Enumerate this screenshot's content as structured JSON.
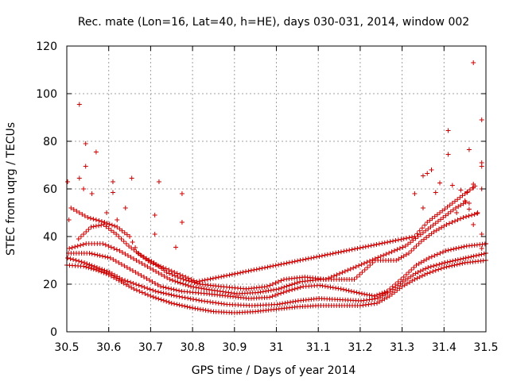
{
  "chart_data": {
    "type": "scatter",
    "title": "Rec. mate (Lon=16, Lat=40, h=HE), days 030-031, 2014, window 002",
    "xlabel": "GPS time / Days of year 2014",
    "ylabel": "STEC from uqrg / TECUs",
    "xlim": [
      30.5,
      31.5
    ],
    "ylim": [
      0,
      120
    ],
    "xticks": [
      30.5,
      30.6,
      30.7,
      30.8,
      30.9,
      31.0,
      31.1,
      31.2,
      31.3,
      31.4,
      31.5
    ],
    "xtick_labels": [
      "30.5",
      "30.6",
      "30.7",
      "30.8",
      "30.9",
      "31",
      "31.1",
      "31.2",
      "31.3",
      "31.4",
      "31.5"
    ],
    "yticks": [
      0,
      20,
      40,
      60,
      80,
      100,
      120
    ],
    "ytick_labels": [
      "0",
      "20",
      "40",
      "60",
      "80",
      "100",
      "120"
    ],
    "grid": true,
    "marker": "+",
    "color": "#cc0000",
    "outliers": [
      [
        30.502,
        63
      ],
      [
        30.505,
        47
      ],
      [
        30.53,
        95.5
      ],
      [
        30.545,
        79
      ],
      [
        30.545,
        69.5
      ],
      [
        30.53,
        64.5
      ],
      [
        30.57,
        75.5
      ],
      [
        30.56,
        58
      ],
      [
        30.54,
        60
      ],
      [
        30.595,
        50
      ],
      [
        30.61,
        63
      ],
      [
        30.61,
        58.5
      ],
      [
        30.62,
        47
      ],
      [
        30.64,
        52
      ],
      [
        30.655,
        64.5
      ],
      [
        30.72,
        63
      ],
      [
        30.71,
        49
      ],
      [
        30.71,
        41
      ],
      [
        30.775,
        58
      ],
      [
        30.775,
        46
      ],
      [
        30.76,
        35.5
      ],
      [
        31.47,
        113
      ],
      [
        31.49,
        89
      ],
      [
        31.41,
        84.5
      ],
      [
        31.41,
        74.5
      ],
      [
        31.46,
        76.5
      ],
      [
        31.49,
        71
      ],
      [
        31.49,
        69.5
      ],
      [
        31.36,
        66.5
      ],
      [
        31.37,
        68
      ],
      [
        31.35,
        65.5
      ],
      [
        31.47,
        60.5
      ],
      [
        31.49,
        60
      ],
      [
        31.44,
        59.5
      ],
      [
        31.455,
        58.5
      ],
      [
        31.39,
        62.5
      ],
      [
        31.42,
        61.5
      ],
      [
        31.33,
        58
      ],
      [
        31.38,
        58.5
      ],
      [
        31.47,
        45
      ],
      [
        31.49,
        41
      ],
      [
        31.49,
        35
      ],
      [
        31.35,
        52
      ],
      [
        31.43,
        50
      ],
      [
        31.46,
        51.5
      ],
      [
        31.46,
        54
      ]
    ],
    "bands": [
      {
        "offset": 0,
        "points": [
          [
            30.5,
            28
          ],
          [
            30.54,
            27.5
          ],
          [
            30.57,
            26
          ],
          [
            30.6,
            24
          ],
          [
            30.63,
            21
          ],
          [
            30.66,
            18
          ],
          [
            30.7,
            15
          ],
          [
            30.75,
            12
          ],
          [
            30.8,
            10
          ],
          [
            30.85,
            8.5
          ],
          [
            30.9,
            8
          ],
          [
            30.95,
            8.5
          ],
          [
            31.0,
            9.5
          ],
          [
            31.05,
            10.5
          ],
          [
            31.1,
            11
          ],
          [
            31.15,
            11
          ],
          [
            31.2,
            11
          ],
          [
            31.24,
            12
          ],
          [
            31.27,
            15
          ],
          [
            31.3,
            19
          ],
          [
            31.33,
            22
          ],
          [
            31.36,
            24.5
          ],
          [
            31.4,
            27
          ],
          [
            31.45,
            29
          ],
          [
            31.5,
            30
          ]
        ]
      },
      {
        "offset": 0.004,
        "points": [
          [
            30.5,
            31
          ],
          [
            30.54,
            29
          ],
          [
            30.57,
            27
          ],
          [
            30.6,
            25
          ],
          [
            30.63,
            22
          ],
          [
            30.67,
            19.5
          ],
          [
            30.71,
            17
          ],
          [
            30.76,
            15
          ],
          [
            30.82,
            13
          ],
          [
            30.88,
            11.5
          ],
          [
            30.94,
            11
          ],
          [
            31.0,
            11.5
          ],
          [
            31.05,
            13
          ],
          [
            31.1,
            14
          ],
          [
            31.15,
            13.5
          ],
          [
            31.2,
            13
          ],
          [
            31.24,
            14
          ],
          [
            31.27,
            17
          ],
          [
            31.3,
            21
          ],
          [
            31.33,
            24.5
          ],
          [
            31.36,
            27
          ],
          [
            31.4,
            29
          ],
          [
            31.45,
            31
          ],
          [
            31.5,
            33
          ]
        ]
      },
      {
        "offset": 0.008,
        "points": [
          [
            30.5,
            33
          ],
          [
            30.55,
            33
          ],
          [
            30.6,
            31
          ],
          [
            30.64,
            27
          ],
          [
            30.68,
            23
          ],
          [
            30.72,
            19
          ],
          [
            30.77,
            17
          ],
          [
            30.83,
            16
          ],
          [
            30.88,
            15
          ],
          [
            30.93,
            14
          ],
          [
            30.98,
            14.5
          ],
          [
            31.02,
            17
          ],
          [
            31.06,
            19
          ],
          [
            31.1,
            19.5
          ],
          [
            31.15,
            18
          ],
          [
            31.2,
            16
          ],
          [
            31.23,
            15
          ],
          [
            31.26,
            17
          ],
          [
            31.3,
            23
          ],
          [
            31.33,
            28
          ],
          [
            31.36,
            31
          ],
          [
            31.4,
            34
          ],
          [
            31.45,
            36
          ],
          [
            31.5,
            37
          ]
        ]
      },
      {
        "offset": 0.012,
        "points": [
          [
            30.5,
            35
          ],
          [
            30.54,
            37
          ],
          [
            30.58,
            37
          ],
          [
            30.62,
            34
          ],
          [
            30.66,
            30
          ],
          [
            30.7,
            26
          ],
          [
            30.74,
            22
          ],
          [
            30.79,
            19
          ],
          [
            30.84,
            17.5
          ],
          [
            30.9,
            16
          ],
          [
            30.95,
            16.5
          ],
          [
            31.0,
            18
          ],
          [
            31.05,
            21
          ],
          [
            31.1,
            22
          ],
          [
            31.15,
            22
          ],
          [
            31.18,
            22
          ],
          [
            31.23,
            30
          ],
          [
            31.28,
            30
          ],
          [
            31.31,
            33
          ],
          [
            31.34,
            38
          ],
          [
            31.37,
            42
          ],
          [
            31.4,
            45
          ],
          [
            31.44,
            48
          ],
          [
            31.48,
            50
          ]
        ]
      },
      {
        "offset": 0.016,
        "points": [
          [
            30.52,
            39
          ],
          [
            30.55,
            44
          ],
          [
            30.58,
            45
          ],
          [
            30.61,
            41
          ],
          [
            30.64,
            36
          ],
          [
            30.67,
            32
          ],
          [
            30.7,
            29
          ],
          [
            30.73,
            25
          ],
          [
            30.77,
            22
          ],
          [
            30.81,
            20
          ],
          [
            30.86,
            19
          ],
          [
            30.92,
            18
          ],
          [
            30.97,
            19
          ],
          [
            31.01,
            22
          ],
          [
            31.06,
            23
          ],
          [
            31.11,
            22
          ],
          [
            31.3,
            36
          ],
          [
            31.33,
            40
          ],
          [
            31.36,
            44
          ],
          [
            31.39,
            48
          ],
          [
            31.42,
            52
          ],
          [
            31.45,
            55
          ]
        ]
      },
      {
        "offset": 0.02,
        "points": [
          [
            30.5,
            52
          ],
          [
            30.54,
            48
          ],
          [
            30.58,
            46
          ],
          [
            30.61,
            44
          ],
          [
            30.64,
            40
          ],
          [
            30.66,
            33
          ],
          [
            30.69,
            29
          ],
          [
            30.72,
            27
          ],
          [
            30.76,
            24
          ],
          [
            30.8,
            21
          ],
          [
            31.32,
            40
          ],
          [
            31.35,
            46
          ],
          [
            31.38,
            50
          ],
          [
            31.41,
            54
          ],
          [
            31.44,
            58
          ],
          [
            31.47,
            62
          ]
        ]
      }
    ]
  }
}
